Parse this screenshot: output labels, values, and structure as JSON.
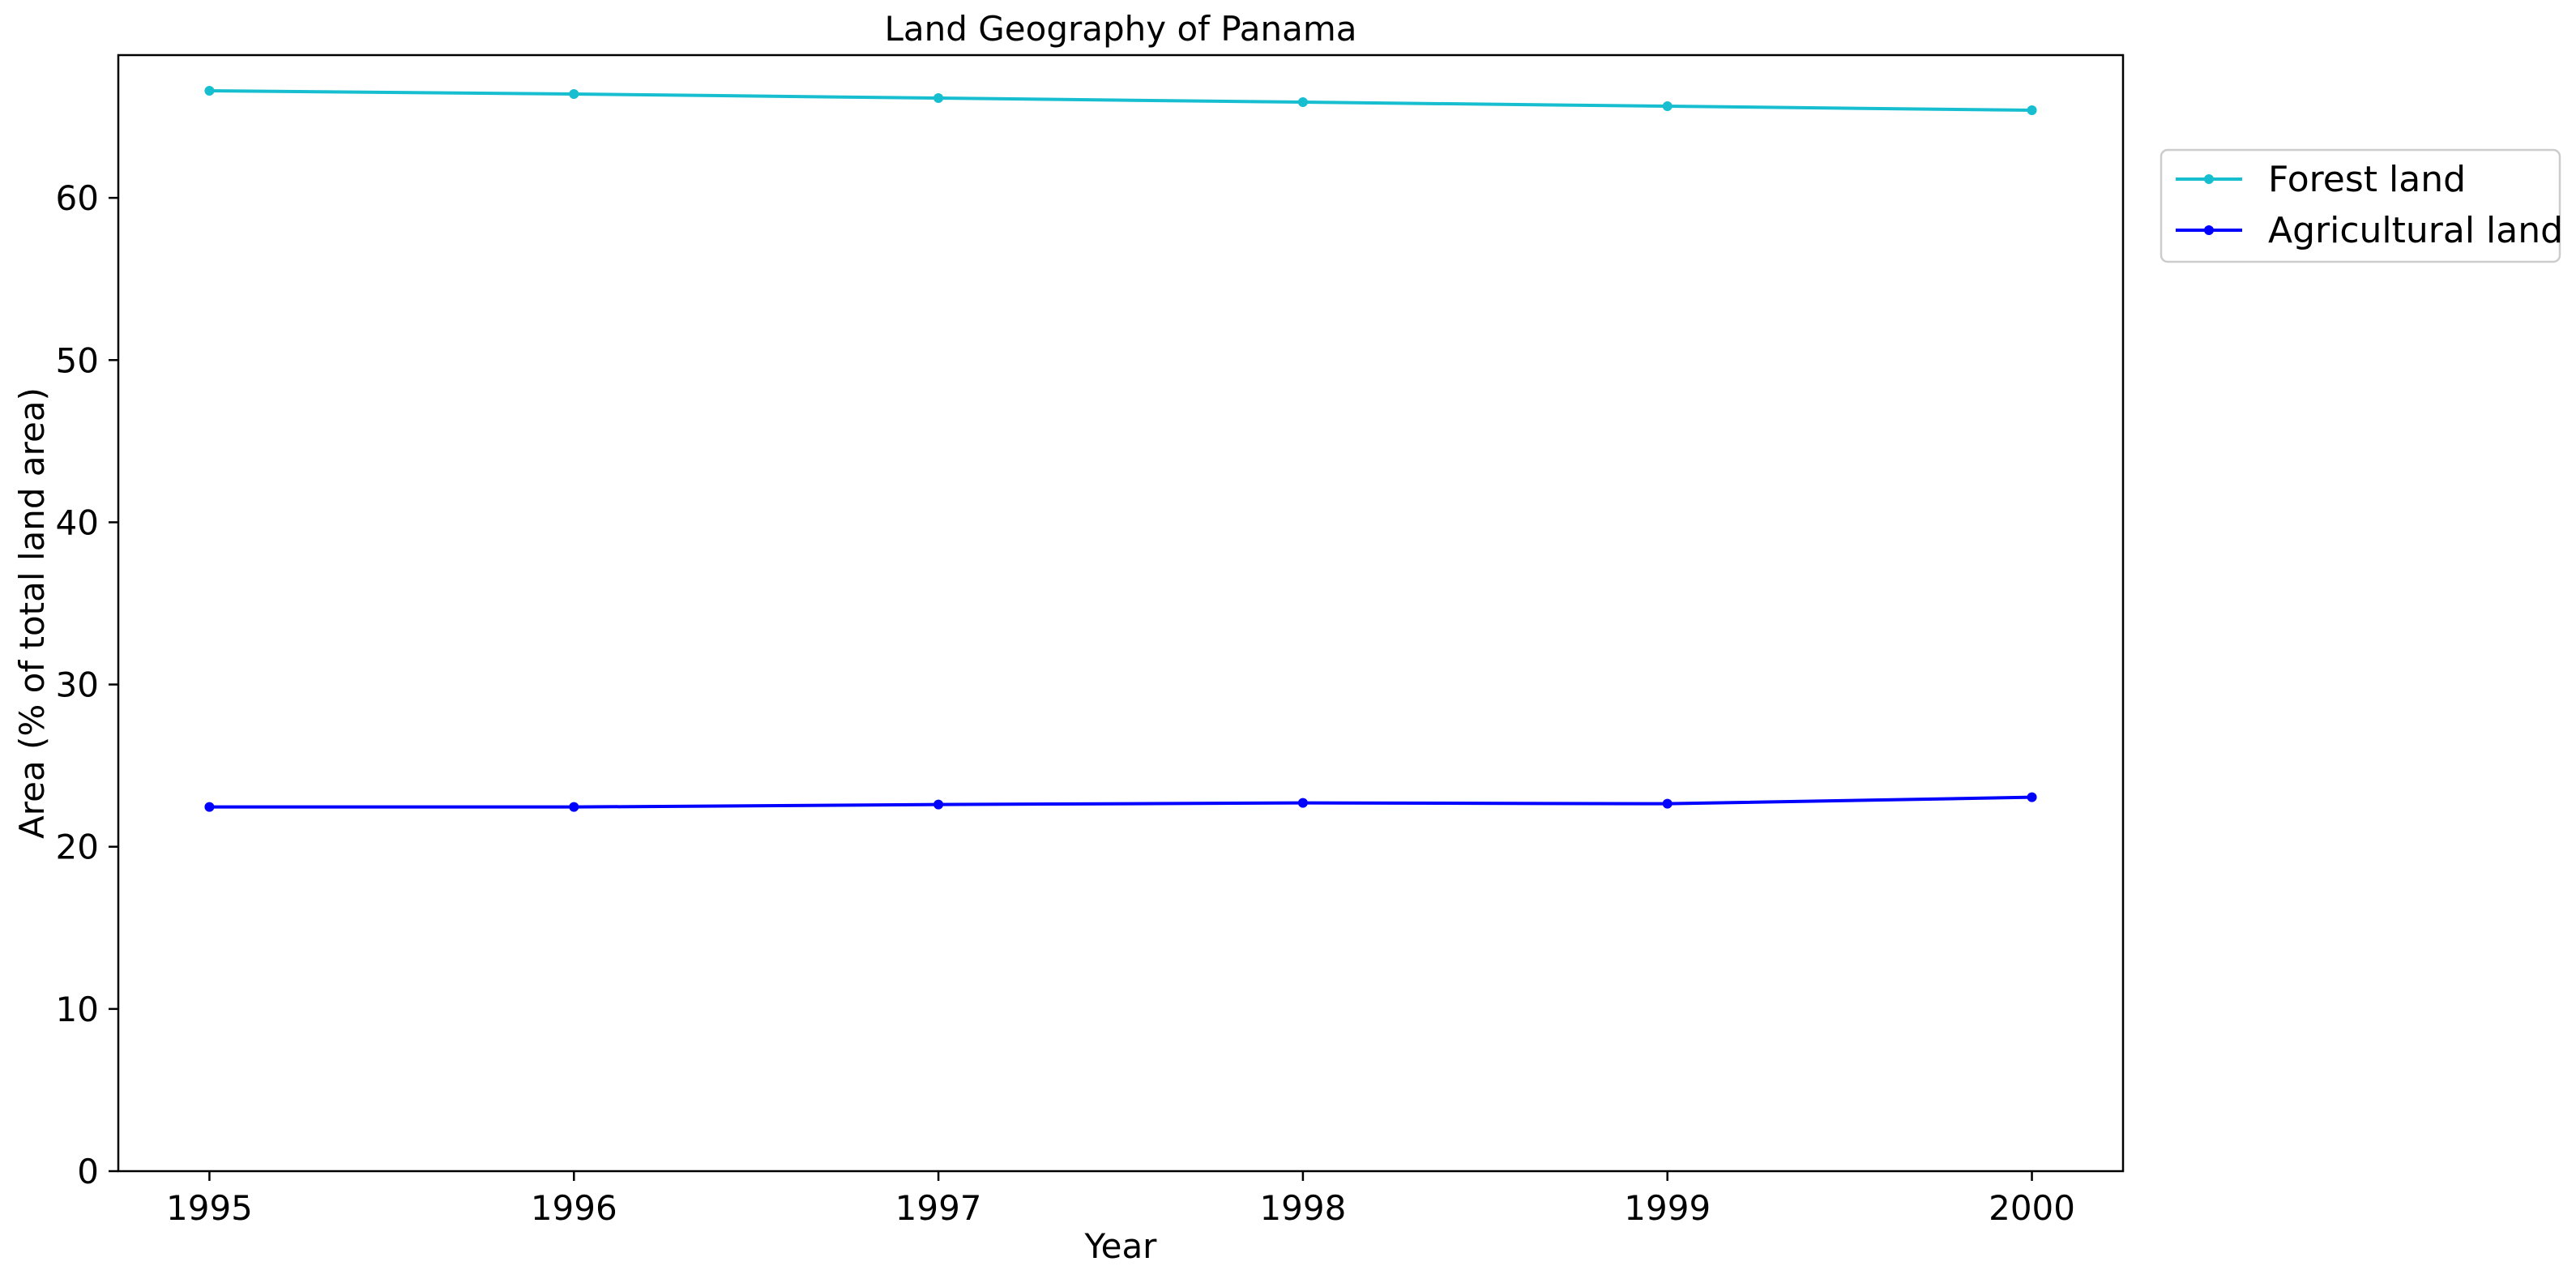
{
  "chart_data": {
    "type": "line",
    "title": "Land Geography of Panama",
    "xlabel": "Year",
    "ylabel": "Area (% of total land area)",
    "x": [
      1995,
      1996,
      1997,
      1998,
      1999,
      2000
    ],
    "x_tick_labels": [
      "1995",
      "1996",
      "1997",
      "1998",
      "1999",
      "2000"
    ],
    "xlim": [
      1994.75,
      2000.25
    ],
    "ylim": [
      0,
      68.8
    ],
    "y_ticks": [
      0,
      10,
      20,
      30,
      40,
      50,
      60
    ],
    "y_tick_labels": [
      "0",
      "10",
      "20",
      "30",
      "40",
      "50",
      "60"
    ],
    "grid": false,
    "legend_position": "outside-right-top",
    "series": [
      {
        "name": "Forest land",
        "color": "#17becf",
        "marker": "dot",
        "values": [
          66.6,
          66.4,
          66.15,
          65.9,
          65.65,
          65.4
        ]
      },
      {
        "name": "Agricultural land",
        "color": "#0000ff",
        "marker": "dot",
        "values": [
          22.45,
          22.45,
          22.6,
          22.7,
          22.65,
          23.05
        ]
      }
    ]
  }
}
